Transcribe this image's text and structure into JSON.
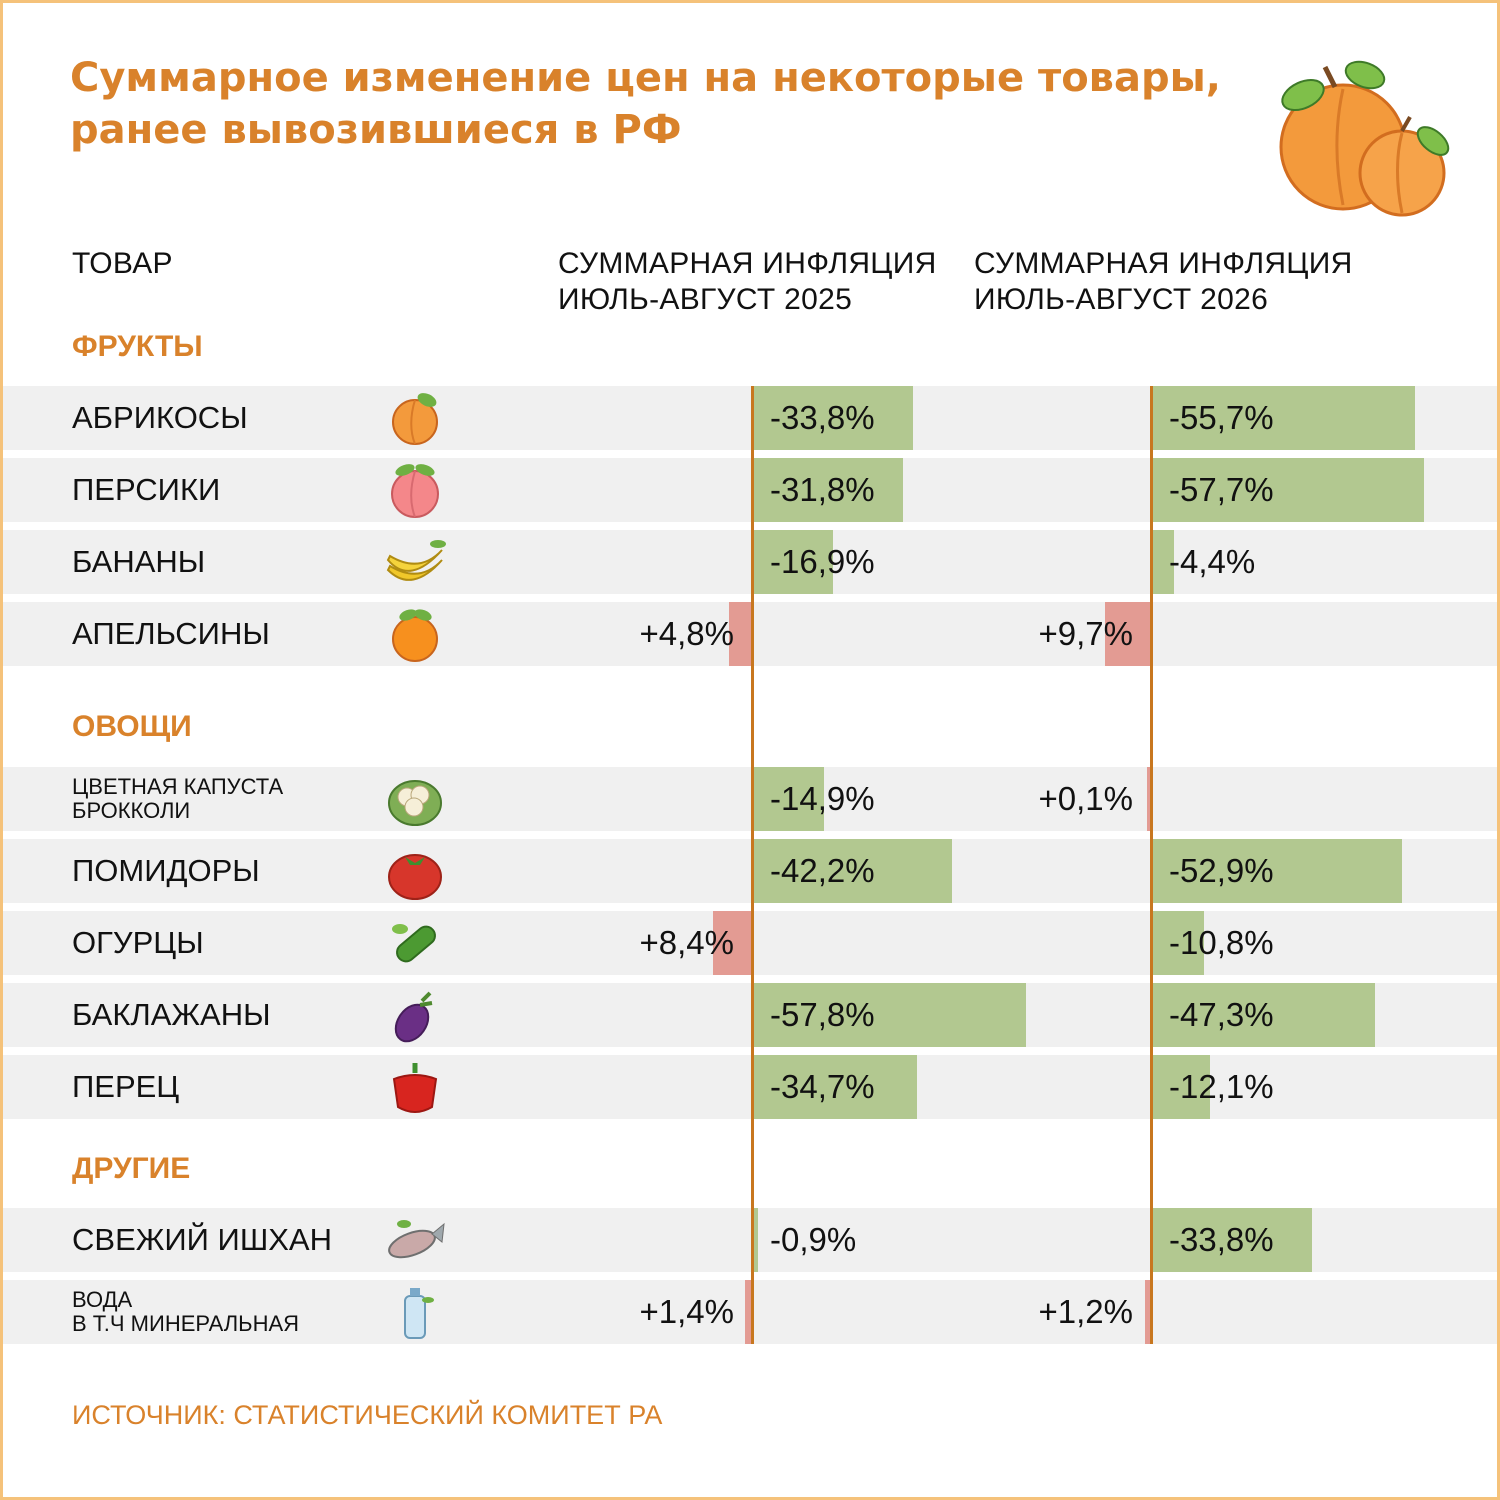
{
  "title_lines": [
    "Суммарное изменение цен на некоторые товары,",
    "ранее вывозившиеся в РФ"
  ],
  "headers": {
    "product": "ТОВАР",
    "col2025": [
      "СУММАРНАЯ ИНФЛЯЦИЯ",
      "ИЮЛЬ-АВГУСТ 2025"
    ],
    "col2026": [
      "СУММАРНАЯ ИНФЛЯЦИЯ",
      "ИЮЛЬ-АВГУСТ 2026"
    ]
  },
  "colors": {
    "accent": "#d9822b",
    "negative_bar": "#b2c890",
    "positive_bar": "#e39b93",
    "row_bg": "#f0f0f0",
    "axis": "#c8771f"
  },
  "chart_data": {
    "type": "bar",
    "orientation": "horizontal",
    "series": [
      {
        "name": "СУММАРНАЯ ИНФЛЯЦИЯ ИЮЛЬ-АВГУСТ 2025"
      },
      {
        "name": "СУММАРНАЯ ИНФЛЯЦИЯ ИЮЛЬ-АВГУСТ 2026"
      }
    ],
    "groups": [
      {
        "label": "ФРУКТЫ",
        "items": [
          {
            "label": "АБРИКОСЫ",
            "icon": "apricot-icon",
            "v2025": -33.8,
            "t2025": "-33,8%",
            "v2026": -55.7,
            "t2026": "-55,7%"
          },
          {
            "label": "ПЕРСИКИ",
            "icon": "peach-icon",
            "v2025": -31.8,
            "t2025": "-31,8%",
            "v2026": -57.7,
            "t2026": "-57,7%"
          },
          {
            "label": "БАНАНЫ",
            "icon": "banana-icon",
            "v2025": -16.9,
            "t2025": "-16,9%",
            "v2026": -4.4,
            "t2026": "-4,4%"
          },
          {
            "label": "АПЕЛЬСИНЫ",
            "icon": "orange-icon",
            "v2025": 4.8,
            "t2025": "+4,8%",
            "v2026": 9.7,
            "t2026": "+9,7%"
          }
        ]
      },
      {
        "label": "ОВОЩИ",
        "items": [
          {
            "label": "ЦВЕТНАЯ КАПУСТА\nБРОККОЛИ",
            "icon": "cauliflower-icon",
            "v2025": -14.9,
            "t2025": "-14,9%",
            "v2026": 0.1,
            "t2026": "+0,1%"
          },
          {
            "label": "ПОМИДОРЫ",
            "icon": "tomato-icon",
            "v2025": -42.2,
            "t2025": "-42,2%",
            "v2026": -52.9,
            "t2026": "-52,9%"
          },
          {
            "label": "ОГУРЦЫ",
            "icon": "cucumber-icon",
            "v2025": 8.4,
            "t2025": "+8,4%",
            "v2026": -10.8,
            "t2026": "-10,8%"
          },
          {
            "label": "БАКЛАЖАНЫ",
            "icon": "eggplant-icon",
            "v2025": -57.8,
            "t2025": "-57,8%",
            "v2026": -47.3,
            "t2026": "-47,3%"
          },
          {
            "label": "ПЕРЕЦ",
            "icon": "pepper-icon",
            "v2025": -34.7,
            "t2025": "-34,7%",
            "v2026": -12.1,
            "t2026": "-12,1%"
          }
        ]
      },
      {
        "label": "ДРУГИЕ",
        "items": [
          {
            "label": "СВЕЖИЙ ИШХАН",
            "icon": "fish-icon",
            "v2025": -0.9,
            "t2025": "-0,9%",
            "v2026": -33.8,
            "t2026": "-33,8%"
          },
          {
            "label": "ВОДА\nВ Т.Ч МИНЕРАЛЬНАЯ",
            "icon": "water-bottle-icon",
            "v2025": 1.4,
            "t2025": "+1,4%",
            "v2026": 1.2,
            "t2026": "+1,2%"
          }
        ]
      }
    ]
  },
  "source": "ИСТОЧНИК: СТАТИСТИЧЕСКИЙ КОМИТЕТ РА",
  "decor_icon": "apricots-icon"
}
